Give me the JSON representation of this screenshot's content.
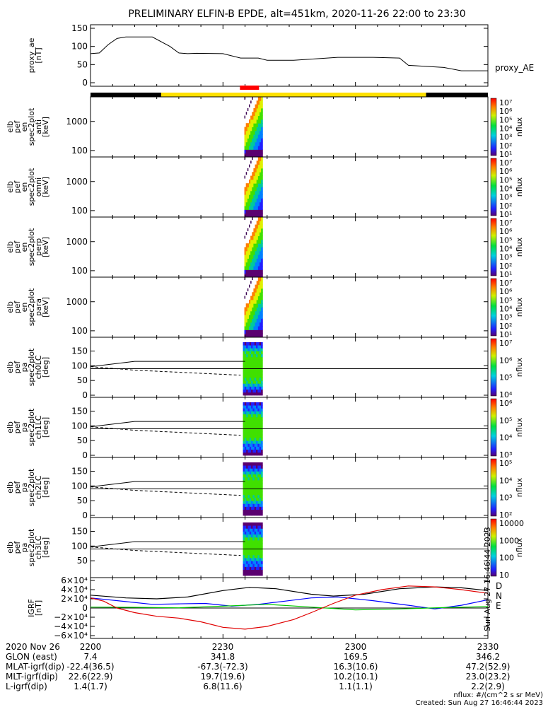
{
  "title": "PRELIMINARY ELFIN-B EPDE, alt=451km, 2020-11-26 22:00 to 23:30",
  "footer": {
    "units": "nflux: #/(cm^2 s sr MeV)",
    "created": "Created: Sun Aug 27 16:46:44 2023",
    "side_stamp": "Sun Aug 27 16:46:44 2023"
  },
  "bottom_axis": {
    "row_labels": [
      "2020 Nov 26",
      "GLON (east)",
      "MLAT-igrf(dip)",
      "MLT-igrf(dip)",
      "L-igrf(dip)"
    ],
    "columns": [
      {
        "values": [
          "2200",
          "7.4",
          "-22.4(36.5)",
          "22.6(22.9)",
          "1.4(1.7)"
        ]
      },
      {
        "values": [
          "2230",
          "341.8",
          "-67.3(-72.3)",
          "19.7(19.6)",
          "6.8(11.6)"
        ]
      },
      {
        "values": [
          "2300",
          "169.5",
          "16.3(10.6)",
          "10.2(10.1)",
          "1.1(1.1)"
        ]
      },
      {
        "values": [
          "2330",
          "346.2",
          "47.2(52.9)",
          "23.0(23.2)",
          "2.2(2.9)"
        ]
      }
    ]
  },
  "chart_data": [
    {
      "type": "line",
      "panel": "proxy_ae",
      "ylabel": [
        "proxy_ae",
        "[nT]"
      ],
      "legend": "proxy_AE",
      "ylim": [
        0,
        150
      ],
      "yticks": [
        "150",
        "100",
        "50",
        "0"
      ],
      "series": [
        {
          "name": "proxy_AE",
          "x_minutes": [
            0,
            2,
            4,
            6,
            8,
            10,
            14,
            18,
            20,
            22,
            24,
            30,
            34,
            38,
            40,
            46,
            50,
            56,
            60,
            64,
            70,
            72,
            76,
            80,
            84,
            88,
            90
          ],
          "y": [
            80,
            82,
            105,
            122,
            126,
            126,
            126,
            100,
            82,
            80,
            81,
            80,
            68,
            68,
            62,
            62,
            65,
            70,
            70,
            70,
            68,
            48,
            45,
            42,
            33,
            33,
            33
          ]
        }
      ]
    },
    {
      "type": "heatmap",
      "panel": "flag_bar",
      "segments": [
        {
          "from": 0,
          "to": 16,
          "color": "#000000"
        },
        {
          "from": 16,
          "to": 76,
          "color": "#ffe000"
        },
        {
          "from": 76,
          "to": 90,
          "color": "#000000"
        }
      ],
      "science_zone": {
        "from": 34,
        "to": 38,
        "color": "#ff0000"
      }
    },
    {
      "type": "heatmap",
      "panel": "elb_pef_en_spec2plot_anti",
      "ylabel": [
        "elb",
        "pef",
        "en",
        "spec2plot",
        "anti",
        "[keV]"
      ],
      "ylog": true,
      "ylim": [
        60,
        7000
      ],
      "yticks": [
        "1000",
        "100"
      ],
      "zlabel": "nflux",
      "zticks": [
        "10⁷",
        "10⁶",
        "10⁵",
        "10⁴",
        "10³",
        "10²",
        "10¹"
      ],
      "active_minutes": [
        35,
        38
      ]
    },
    {
      "type": "heatmap",
      "panel": "elb_pef_en_spec2plot_omni",
      "ylabel": [
        "elb",
        "pef",
        "en",
        "spec2plot",
        "omni",
        "[keV]"
      ],
      "ylog": true,
      "ylim": [
        60,
        7000
      ],
      "yticks": [
        "1000",
        "100"
      ],
      "zlabel": "nflux",
      "zticks": [
        "10⁷",
        "10⁶",
        "10⁵",
        "10⁴",
        "10³",
        "10²",
        "10¹"
      ],
      "active_minutes": [
        35,
        38
      ]
    },
    {
      "type": "heatmap",
      "panel": "elb_pef_en_spec2plot_perp",
      "ylabel": [
        "elb",
        "pef",
        "en",
        "spec2plot",
        "perp",
        "[keV]"
      ],
      "ylog": true,
      "ylim": [
        60,
        7000
      ],
      "yticks": [
        "1000",
        "100"
      ],
      "zlabel": "nflux",
      "zticks": [
        "10⁷",
        "10⁶",
        "10⁵",
        "10⁴",
        "10³",
        "10²",
        "10¹"
      ],
      "active_minutes": [
        35,
        38
      ]
    },
    {
      "type": "heatmap",
      "panel": "elb_pef_en_spec2plot_para",
      "ylabel": [
        "elb",
        "pef",
        "en",
        "spec2plot",
        "para",
        "[keV]"
      ],
      "ylog": true,
      "ylim": [
        60,
        7000
      ],
      "yticks": [
        "1000",
        "100"
      ],
      "zlabel": "nflux",
      "zticks": [
        "10⁷",
        "10⁶",
        "10⁵",
        "10⁴",
        "10³",
        "10²",
        "10¹"
      ],
      "active_minutes": [
        35,
        38
      ]
    },
    {
      "type": "heatmap",
      "panel": "elb_pef_pa_spec2plot_ch0LC",
      "ylabel": [
        "elb",
        "pef",
        "pa",
        "spec2plot",
        "ch0LC",
        "[deg]"
      ],
      "ylim": [
        0,
        180
      ],
      "yticks": [
        "150",
        "100",
        "50",
        "0"
      ],
      "zlabel": "nflux",
      "zticks": [
        "10⁷",
        "10⁶",
        "10⁵",
        "10⁴"
      ],
      "active_minutes": [
        35,
        38
      ]
    },
    {
      "type": "heatmap",
      "panel": "elb_pef_pa_spec2plot_ch1LC",
      "ylabel": [
        "elb",
        "pef",
        "pa",
        "spec2plot",
        "ch1LC",
        "[deg]"
      ],
      "ylim": [
        0,
        180
      ],
      "yticks": [
        "150",
        "100",
        "50",
        "0"
      ],
      "zlabel": "nflux",
      "zticks": [
        "10⁶",
        "10⁵",
        "10⁴",
        "10³"
      ],
      "active_minutes": [
        35,
        38
      ]
    },
    {
      "type": "heatmap",
      "panel": "elb_pef_pa_spec2plot_ch2LC",
      "ylabel": [
        "elb",
        "pef",
        "pa",
        "spec2plot",
        "ch2LC",
        "[deg]"
      ],
      "ylim": [
        0,
        180
      ],
      "yticks": [
        "150",
        "100",
        "50",
        "0"
      ],
      "zlabel": "nflux",
      "zticks": [
        "10⁵",
        "10⁴",
        "10³",
        "10²"
      ],
      "active_minutes": [
        35,
        38
      ]
    },
    {
      "type": "heatmap",
      "panel": "elb_pef_pa_spec2plot_ch3LC",
      "ylabel": [
        "elb",
        "pef",
        "pa",
        "spec2plot",
        "ch3LC",
        "[deg]"
      ],
      "ylim": [
        0,
        180
      ],
      "yticks": [
        "150",
        "100",
        "50"
      ],
      "zlabel": "nflux",
      "zticks": [
        "10000",
        "1000",
        "100",
        "10"
      ],
      "active_minutes": [
        35,
        38
      ]
    },
    {
      "type": "line",
      "panel": "igrf",
      "ylabel": [
        "IGRF",
        "[nT]"
      ],
      "ylim": [
        -60000,
        60000
      ],
      "yticks": [
        "6×10⁴",
        "4×10⁴",
        "2×10⁴",
        "0",
        "−2×10⁴",
        "−4×10⁴",
        "−6×10⁴"
      ],
      "series": [
        {
          "name": "D",
          "color": "#000000",
          "x_minutes": [
            0,
            8,
            15,
            22,
            30,
            36,
            42,
            50,
            55,
            62,
            70,
            78,
            84,
            90
          ],
          "y": [
            28000,
            22000,
            20000,
            24000,
            38000,
            45000,
            42000,
            30000,
            26000,
            30000,
            42000,
            46000,
            44000,
            38000
          ]
        },
        {
          "name": "N",
          "color": "#0000ff",
          "x_minutes": [
            0,
            8,
            14,
            20,
            26,
            32,
            38,
            44,
            50,
            56,
            64,
            72,
            78,
            84,
            90
          ],
          "y": [
            22000,
            14000,
            8000,
            9000,
            10000,
            4000,
            8000,
            15000,
            22000,
            24000,
            16000,
            6000,
            -2000,
            6000,
            18000
          ]
        },
        {
          "name": "E",
          "color": "#00c800",
          "x_minutes": [
            0,
            10,
            20,
            30,
            40,
            50,
            60,
            70,
            80,
            90
          ],
          "y": [
            2000,
            1500,
            500,
            4000,
            8000,
            2000,
            -4000,
            -2000,
            1000,
            3000
          ]
        },
        {
          "name": "",
          "color": "#e00000",
          "x_minutes": [
            0,
            3,
            6,
            10,
            15,
            20,
            25,
            30,
            35,
            40,
            46,
            50,
            55,
            60,
            66,
            72,
            78,
            84,
            90
          ],
          "y": [
            22000,
            15000,
            0,
            -10000,
            -18000,
            -22000,
            -30000,
            -42000,
            -46000,
            -40000,
            -25000,
            -10000,
            10000,
            28000,
            40000,
            48000,
            46000,
            40000,
            32000
          ]
        }
      ]
    }
  ]
}
